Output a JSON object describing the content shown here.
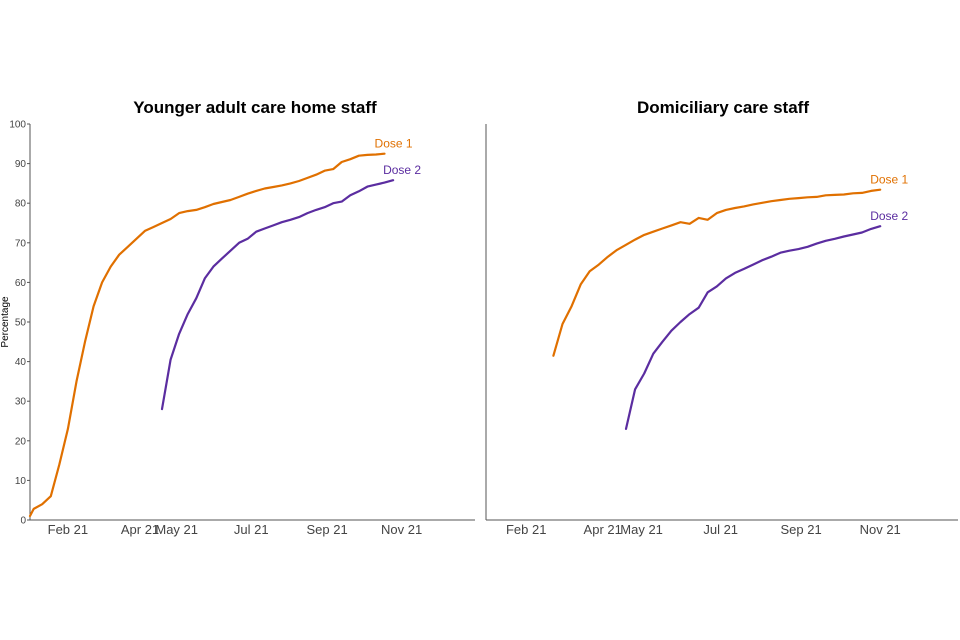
{
  "colors": {
    "dose1": "#e07000",
    "dose2": "#5b2da0"
  },
  "chart_data": [
    {
      "type": "line",
      "title": "Younger adult care home staff",
      "ylabel": "Percentage",
      "xlabel": "",
      "ylim": [
        0,
        100
      ],
      "yticks": [
        "0",
        "10",
        "20",
        "30",
        "40",
        "50",
        "60",
        "70",
        "80",
        "90",
        "100"
      ],
      "xlim": [
        "2021-01-01",
        "2021-12-31"
      ],
      "xticks": [
        {
          "date": "2021-02-01",
          "label": "Feb 21"
        },
        {
          "date": "2021-04-01",
          "label": "Apr 21"
        },
        {
          "date": "2021-05-01",
          "label": "May 21"
        },
        {
          "date": "2021-07-01",
          "label": "Jul 21"
        },
        {
          "date": "2021-09-01",
          "label": "Sep 21"
        },
        {
          "date": "2021-11-01",
          "label": "Nov 21"
        }
      ],
      "series": [
        {
          "name": "Dose 1",
          "x": [
            "2021-01-01",
            "2021-01-04",
            "2021-01-11",
            "2021-01-18",
            "2021-01-25",
            "2021-02-01",
            "2021-02-08",
            "2021-02-15",
            "2021-02-22",
            "2021-03-01",
            "2021-03-08",
            "2021-03-15",
            "2021-03-22",
            "2021-03-29",
            "2021-04-05",
            "2021-04-12",
            "2021-04-19",
            "2021-04-26",
            "2021-05-03",
            "2021-05-10",
            "2021-05-17",
            "2021-05-24",
            "2021-05-31",
            "2021-06-07",
            "2021-06-14",
            "2021-06-21",
            "2021-06-28",
            "2021-07-05",
            "2021-07-12",
            "2021-07-19",
            "2021-07-26",
            "2021-08-02",
            "2021-08-09",
            "2021-08-16",
            "2021-08-23",
            "2021-08-30",
            "2021-09-06",
            "2021-09-13",
            "2021-09-20",
            "2021-09-27",
            "2021-10-04",
            "2021-10-11",
            "2021-10-18",
            "2021-10-25",
            "2021-11-01",
            "2021-11-08"
          ],
          "values": [
            1,
            2.8,
            4,
            6,
            14,
            23,
            35,
            45,
            54,
            60,
            64,
            67,
            69,
            71,
            73,
            74,
            75,
            76,
            77.5,
            78,
            78.3,
            79,
            79.8,
            80.3,
            80.8,
            81.6,
            82.4,
            83.1,
            83.7,
            84.1,
            84.5,
            85,
            85.6,
            86.4,
            87.2,
            88.2,
            88.6,
            90.4,
            91.1,
            92,
            92.2,
            92.3,
            92.5,
            null,
            null,
            null
          ]
        },
        {
          "name": "Dose 2",
          "x": [
            "2021-04-19",
            "2021-04-26",
            "2021-05-03",
            "2021-05-10",
            "2021-05-17",
            "2021-05-24",
            "2021-05-31",
            "2021-06-07",
            "2021-06-14",
            "2021-06-21",
            "2021-06-28",
            "2021-07-05",
            "2021-07-12",
            "2021-07-19",
            "2021-07-26",
            "2021-08-02",
            "2021-08-09",
            "2021-08-16",
            "2021-08-23",
            "2021-08-30",
            "2021-09-06",
            "2021-09-13",
            "2021-09-20",
            "2021-09-27",
            "2021-10-04",
            "2021-10-11",
            "2021-10-18",
            "2021-10-25"
          ],
          "values": [
            28,
            40.5,
            47,
            52,
            56,
            61,
            64,
            66,
            68,
            70,
            71,
            72.8,
            73.6,
            74.4,
            75.2,
            75.8,
            76.5,
            77.5,
            78.3,
            79,
            80,
            80.4,
            82,
            83,
            84.2,
            84.7,
            85.2,
            85.8
          ]
        }
      ]
    },
    {
      "type": "line",
      "title": "Domiciliary care staff",
      "ylabel": "",
      "xlabel": "",
      "ylim": [
        0,
        100
      ],
      "xlim": [
        "2021-01-01",
        "2021-12-31"
      ],
      "xticks": [
        {
          "date": "2021-02-01",
          "label": "Feb 21"
        },
        {
          "date": "2021-04-01",
          "label": "Apr 21"
        },
        {
          "date": "2021-05-01",
          "label": "May 21"
        },
        {
          "date": "2021-07-01",
          "label": "Jul 21"
        },
        {
          "date": "2021-09-01",
          "label": "Sep 21"
        },
        {
          "date": "2021-11-01",
          "label": "Nov 21"
        }
      ],
      "series": [
        {
          "name": "Dose 1",
          "x": [
            "2021-02-22",
            "2021-03-01",
            "2021-03-08",
            "2021-03-15",
            "2021-03-22",
            "2021-03-29",
            "2021-04-05",
            "2021-04-12",
            "2021-04-19",
            "2021-04-26",
            "2021-05-03",
            "2021-05-10",
            "2021-05-17",
            "2021-05-24",
            "2021-05-31",
            "2021-06-07",
            "2021-06-14",
            "2021-06-21",
            "2021-06-28",
            "2021-07-05",
            "2021-07-12",
            "2021-07-19",
            "2021-07-26",
            "2021-08-02",
            "2021-08-09",
            "2021-08-16",
            "2021-08-23",
            "2021-08-30",
            "2021-09-06",
            "2021-09-13",
            "2021-09-20",
            "2021-09-27",
            "2021-10-04",
            "2021-10-11",
            "2021-10-18",
            "2021-10-25",
            "2021-11-01"
          ],
          "values": [
            41.5,
            49.5,
            54,
            59.5,
            62.8,
            64.5,
            66.5,
            68.2,
            69.5,
            70.8,
            72,
            72.8,
            73.6,
            74.4,
            75.2,
            74.8,
            76.3,
            75.8,
            77.5,
            78.3,
            78.8,
            79.2,
            79.7,
            80.1,
            80.5,
            80.8,
            81.1,
            81.3,
            81.5,
            81.6,
            82,
            82.1,
            82.2,
            82.5,
            82.6,
            83.1,
            83.4
          ]
        },
        {
          "name": "Dose 2",
          "x": [
            "2021-04-19",
            "2021-04-26",
            "2021-05-03",
            "2021-05-10",
            "2021-05-17",
            "2021-05-24",
            "2021-05-31",
            "2021-06-07",
            "2021-06-14",
            "2021-06-21",
            "2021-06-28",
            "2021-07-05",
            "2021-07-12",
            "2021-07-19",
            "2021-07-26",
            "2021-08-02",
            "2021-08-09",
            "2021-08-16",
            "2021-08-23",
            "2021-08-30",
            "2021-09-06",
            "2021-09-13",
            "2021-09-20",
            "2021-09-27",
            "2021-10-04",
            "2021-10-11",
            "2021-10-18",
            "2021-10-25",
            "2021-11-01"
          ],
          "values": [
            23,
            33,
            37,
            42,
            45,
            47.8,
            50,
            52,
            53.6,
            57.5,
            59,
            61,
            62.4,
            63.4,
            64.5,
            65.6,
            66.5,
            67.5,
            68,
            68.4,
            69,
            69.8,
            70.5,
            71,
            71.6,
            72.1,
            72.6,
            73.5,
            74.2
          ]
        }
      ]
    }
  ]
}
